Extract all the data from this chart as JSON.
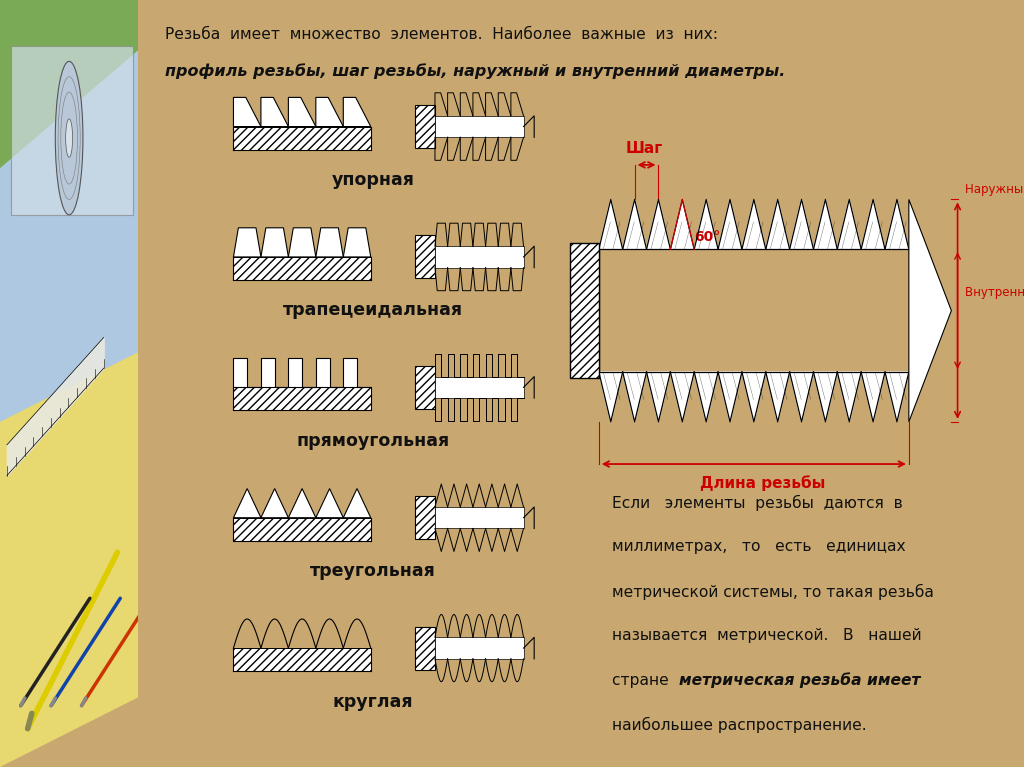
{
  "bg_color": "#f5f0e8",
  "wood_color": "#c8a870",
  "title_line1": "Резьба  имеет  множество  элементов.  Наиболее  важные  из  них:",
  "title_line2": "профиль резьбы, шаг резьбы, наружный и внутренний диаметры.",
  "thread_types": [
    "упорная",
    "трапецеидальная",
    "прямоугольная",
    "треугольная",
    "круглая"
  ],
  "right_text_lines": [
    "Если   элементы  резьбы  даются  в",
    "миллиметрах,   то   есть   единицах",
    "метрической системы, то такая резьба",
    "называется  метрической.   В   нашей",
    "стране  метрическая резьба имеет",
    "наибольшее распространение."
  ],
  "italic_line_idx": 4,
  "italic_prefix": "стране  ",
  "italic_text": "метрическая резьба имеет",
  "diagram_labels": {
    "shag": "Шаг",
    "angle": "60°",
    "naruzhny": "Наружный диаметр",
    "vnutrenny": "Внутренний диаметр",
    "dlina": "Длина резьбы"
  },
  "red_color": "#cc0000",
  "black_color": "#1a1a1a",
  "text_color": "#111111",
  "green_color": "#7aaa55",
  "blue_color": "#adc8e0",
  "yellow_color": "#e8d870"
}
